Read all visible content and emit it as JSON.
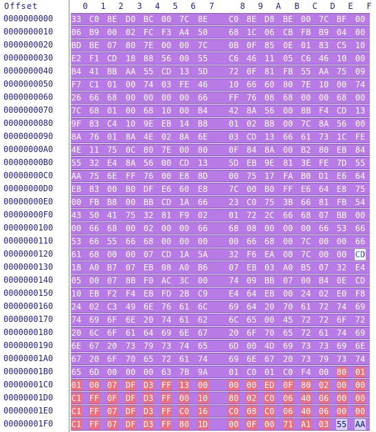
{
  "header": {
    "offset_label": "Offset",
    "columns": [
      "0",
      "1",
      "2",
      "3",
      "4",
      "5",
      "6",
      "7",
      "8",
      "9",
      "A",
      "B",
      "C",
      "D",
      "E",
      "F"
    ]
  },
  "rows": [
    {
      "offset": "0000000000",
      "bytes": [
        "33",
        "C0",
        "8E",
        "D0",
        "BC",
        "00",
        "7C",
        "8E",
        "C0",
        "8E",
        "D8",
        "BE",
        "00",
        "7C",
        "BF",
        "00"
      ]
    },
    {
      "offset": "0000000010",
      "bytes": [
        "06",
        "B9",
        "00",
        "02",
        "FC",
        "F3",
        "A4",
        "50",
        "68",
        "1C",
        "06",
        "CB",
        "FB",
        "B9",
        "04",
        "00"
      ]
    },
    {
      "offset": "0000000020",
      "bytes": [
        "BD",
        "BE",
        "07",
        "80",
        "7E",
        "00",
        "00",
        "7C",
        "0B",
        "0F",
        "85",
        "0E",
        "01",
        "83",
        "C5",
        "10"
      ]
    },
    {
      "offset": "0000000030",
      "bytes": [
        "E2",
        "F1",
        "CD",
        "18",
        "88",
        "56",
        "00",
        "55",
        "C6",
        "46",
        "11",
        "05",
        "C6",
        "46",
        "10",
        "00"
      ]
    },
    {
      "offset": "0000000040",
      "bytes": [
        "B4",
        "41",
        "BB",
        "AA",
        "55",
        "CD",
        "13",
        "5D",
        "72",
        "0F",
        "81",
        "FB",
        "55",
        "AA",
        "75",
        "09"
      ]
    },
    {
      "offset": "0000000050",
      "bytes": [
        "F7",
        "C1",
        "01",
        "00",
        "74",
        "03",
        "FE",
        "46",
        "10",
        "66",
        "60",
        "80",
        "7E",
        "10",
        "00",
        "74"
      ]
    },
    {
      "offset": "0000000060",
      "bytes": [
        "26",
        "66",
        "68",
        "00",
        "00",
        "00",
        "00",
        "66",
        "FF",
        "76",
        "08",
        "68",
        "00",
        "00",
        "68",
        "00"
      ]
    },
    {
      "offset": "0000000070",
      "bytes": [
        "7C",
        "68",
        "01",
        "00",
        "68",
        "10",
        "00",
        "B4",
        "42",
        "8A",
        "56",
        "00",
        "8B",
        "F4",
        "CD",
        "13"
      ]
    },
    {
      "offset": "0000000080",
      "bytes": [
        "9F",
        "83",
        "C4",
        "10",
        "9E",
        "EB",
        "14",
        "B8",
        "01",
        "02",
        "BB",
        "00",
        "7C",
        "8A",
        "56",
        "00"
      ]
    },
    {
      "offset": "0000000090",
      "bytes": [
        "8A",
        "76",
        "01",
        "8A",
        "4E",
        "02",
        "8A",
        "6E",
        "03",
        "CD",
        "13",
        "66",
        "61",
        "73",
        "1C",
        "FE"
      ]
    },
    {
      "offset": "00000000A0",
      "bytes": [
        "4E",
        "11",
        "75",
        "0C",
        "80",
        "7E",
        "00",
        "80",
        "0F",
        "84",
        "8A",
        "00",
        "B2",
        "80",
        "EB",
        "84"
      ]
    },
    {
      "offset": "00000000B0",
      "bytes": [
        "55",
        "32",
        "E4",
        "8A",
        "56",
        "00",
        "CD",
        "13",
        "5D",
        "EB",
        "9E",
        "81",
        "3E",
        "FE",
        "7D",
        "55"
      ]
    },
    {
      "offset": "00000000C0",
      "bytes": [
        "AA",
        "75",
        "6E",
        "FF",
        "76",
        "00",
        "E8",
        "8D",
        "00",
        "75",
        "17",
        "FA",
        "B0",
        "D1",
        "E6",
        "64"
      ]
    },
    {
      "offset": "00000000D0",
      "bytes": [
        "E8",
        "83",
        "00",
        "B0",
        "DF",
        "E6",
        "60",
        "E8",
        "7C",
        "00",
        "B0",
        "FF",
        "E6",
        "64",
        "E8",
        "75"
      ]
    },
    {
      "offset": "00000000E0",
      "bytes": [
        "00",
        "FB",
        "B8",
        "00",
        "BB",
        "CD",
        "1A",
        "66",
        "23",
        "C0",
        "75",
        "3B",
        "66",
        "81",
        "FB",
        "54"
      ]
    },
    {
      "offset": "00000000F0",
      "bytes": [
        "43",
        "50",
        "41",
        "75",
        "32",
        "81",
        "F9",
        "02",
        "01",
        "72",
        "2C",
        "66",
        "68",
        "07",
        "BB",
        "00"
      ]
    },
    {
      "offset": "0000000100",
      "bytes": [
        "00",
        "66",
        "68",
        "00",
        "02",
        "00",
        "00",
        "66",
        "68",
        "08",
        "00",
        "00",
        "00",
        "66",
        "53",
        "66"
      ]
    },
    {
      "offset": "0000000110",
      "bytes": [
        "53",
        "66",
        "55",
        "66",
        "68",
        "00",
        "00",
        "00",
        "00",
        "66",
        "68",
        "00",
        "7C",
        "00",
        "00",
        "66"
      ]
    },
    {
      "offset": "0000000120",
      "bytes": [
        "61",
        "68",
        "00",
        "00",
        "07",
        "CD",
        "1A",
        "5A",
        "32",
        "F6",
        "EA",
        "00",
        "7C",
        "00",
        "00",
        "CD"
      ]
    },
    {
      "offset": "0000000130",
      "bytes": [
        "18",
        "A0",
        "B7",
        "07",
        "EB",
        "08",
        "A0",
        "B6",
        "07",
        "EB",
        "03",
        "A0",
        "B5",
        "07",
        "32",
        "E4"
      ]
    },
    {
      "offset": "0000000140",
      "bytes": [
        "05",
        "00",
        "07",
        "8B",
        "F0",
        "AC",
        "3C",
        "00",
        "74",
        "09",
        "BB",
        "07",
        "00",
        "B4",
        "0E",
        "CD"
      ]
    },
    {
      "offset": "0000000150",
      "bytes": [
        "10",
        "EB",
        "F2",
        "F4",
        "EB",
        "FD",
        "2B",
        "C9",
        "E4",
        "64",
        "EB",
        "00",
        "24",
        "02",
        "E0",
        "F8"
      ]
    },
    {
      "offset": "0000000160",
      "bytes": [
        "24",
        "02",
        "C3",
        "49",
        "6E",
        "76",
        "61",
        "6C",
        "69",
        "64",
        "20",
        "70",
        "61",
        "72",
        "74",
        "69"
      ]
    },
    {
      "offset": "0000000170",
      "bytes": [
        "74",
        "69",
        "6F",
        "6E",
        "20",
        "74",
        "61",
        "62",
        "6C",
        "65",
        "00",
        "45",
        "72",
        "72",
        "6F",
        "72"
      ]
    },
    {
      "offset": "0000000180",
      "bytes": [
        "20",
        "6C",
        "6F",
        "61",
        "64",
        "69",
        "6E",
        "67",
        "20",
        "6F",
        "70",
        "65",
        "72",
        "61",
        "74",
        "69"
      ]
    },
    {
      "offset": "0000000190",
      "bytes": [
        "6E",
        "67",
        "20",
        "73",
        "79",
        "73",
        "74",
        "65",
        "6D",
        "00",
        "4D",
        "69",
        "73",
        "73",
        "69",
        "6E"
      ]
    },
    {
      "offset": "00000001A0",
      "bytes": [
        "67",
        "20",
        "6F",
        "70",
        "65",
        "72",
        "61",
        "74",
        "69",
        "6E",
        "67",
        "20",
        "73",
        "79",
        "73",
        "74"
      ]
    },
    {
      "offset": "00000001B0",
      "bytes": [
        "65",
        "6D",
        "00",
        "00",
        "00",
        "63",
        "7B",
        "9A",
        "01",
        "C0",
        "01",
        "C0",
        "F4",
        "00",
        "80",
        "01"
      ]
    },
    {
      "offset": "00000001C0",
      "bytes": [
        "01",
        "00",
        "07",
        "DF",
        "D3",
        "FF",
        "13",
        "00",
        "00",
        "00",
        "ED",
        "0F",
        "80",
        "02",
        "00",
        "00"
      ]
    },
    {
      "offset": "00000001D0",
      "bytes": [
        "C1",
        "FF",
        "0F",
        "DF",
        "D3",
        "FF",
        "00",
        "10",
        "80",
        "02",
        "C0",
        "06",
        "40",
        "06",
        "00",
        "00"
      ]
    },
    {
      "offset": "00000001E0",
      "bytes": [
        "C1",
        "FF",
        "07",
        "DF",
        "D3",
        "FF",
        "C0",
        "16",
        "C0",
        "08",
        "C0",
        "06",
        "40",
        "06",
        "00",
        "00"
      ]
    },
    {
      "offset": "00000001F0",
      "bytes": [
        "C1",
        "FF",
        "07",
        "DF",
        "D3",
        "FF",
        "80",
        "1D",
        "00",
        "0F",
        "00",
        "71",
        "A1",
        "03",
        "55",
        "AA"
      ]
    }
  ],
  "colors": {
    "region_purple": "#b87be6",
    "region_red": "#ea707f",
    "text_blue": "#1f1f8c",
    "caret_blue": "#3355ff"
  }
}
